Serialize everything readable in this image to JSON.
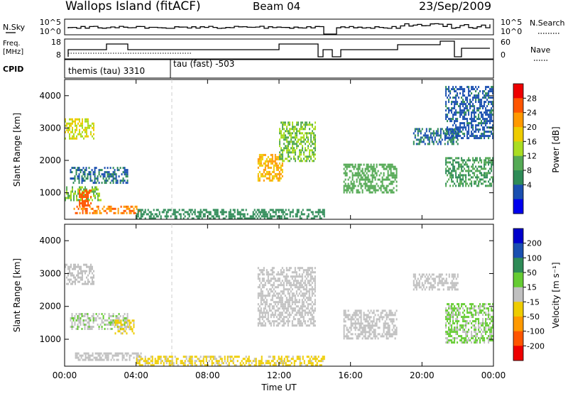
{
  "header": {
    "site": "Wallops Island (fitACF)",
    "beam": "Beam 04",
    "date": "23/Sep/2009"
  },
  "noise_panel": {
    "left_label": "N.Sky",
    "right_label": "N.Search",
    "yticks_left": [
      "10^5",
      "10^0"
    ],
    "yticks_right": [
      "10^5",
      "10^0"
    ]
  },
  "freq_panel": {
    "left_label_1": "Freq.",
    "left_label_2": "[MHz]",
    "right_label": "Nave",
    "yticks_left": [
      "18",
      "8"
    ],
    "yticks_right": [
      "60",
      "0"
    ]
  },
  "cpid": {
    "label": "CPID",
    "program_1": "themis (tau) 3310",
    "program_2": "tau (fast) -503"
  },
  "power_panel": {
    "ylabel": "Slant Range [km]",
    "cbar_label": "Power [dB]",
    "cbar_ticks": [
      "28",
      "24",
      "20",
      "16",
      "12",
      "8",
      "4"
    ],
    "cbar_colors": [
      "#ee0000",
      "#ff5500",
      "#ff9900",
      "#eecc00",
      "#aadd22",
      "#55aa55",
      "#2e8b57",
      "#1a4fb0",
      "#0000ee"
    ]
  },
  "velocity_panel": {
    "ylabel": "Slant Range [km]",
    "cbar_label": "Velocity [m s⁻¹]",
    "cbar_ticks": [
      "200",
      "100",
      "50",
      "15",
      "-15",
      "-50",
      "-100",
      "-200"
    ],
    "cbar_colors": [
      "#0000cc",
      "#1a4fb0",
      "#2e8b57",
      "#66cc33",
      "#c0c0c0",
      "#eecc00",
      "#ff9900",
      "#ff5500",
      "#ee0000"
    ]
  },
  "xaxis": {
    "label": "Time UT",
    "ticks": [
      "00:00",
      "04:00",
      "08:00",
      "12:00",
      "16:00",
      "20:00",
      "00:00"
    ]
  },
  "chart_data": {
    "type": "heatmap",
    "title": "Wallops Island (fitACF) Beam 04 23/Sep/2009",
    "xlabel": "Time UT",
    "ylabel": "Slant Range [km]",
    "xlim_hours": [
      0,
      24
    ],
    "ylim_km": [
      180,
      4500
    ],
    "yticks": [
      1000,
      2000,
      3000,
      4000
    ],
    "series": [
      {
        "name": "Power [dB]",
        "regions": [
          {
            "t0": 0.0,
            "t1": 1.6,
            "r0": 2700,
            "r1": 3300,
            "value": 18
          },
          {
            "t0": 0.3,
            "t1": 3.5,
            "r0": 1300,
            "r1": 1800,
            "value": 6
          },
          {
            "t0": 0.0,
            "t1": 2.0,
            "r0": 800,
            "r1": 1200,
            "value": 14
          },
          {
            "t0": 0.8,
            "t1": 1.5,
            "r0": 600,
            "r1": 1100,
            "value": 28
          },
          {
            "t0": 0.5,
            "t1": 4.3,
            "r0": 350,
            "r1": 600,
            "value": 26
          },
          {
            "t0": 4.0,
            "t1": 14.5,
            "r0": 200,
            "r1": 500,
            "value": 8
          },
          {
            "t0": 10.8,
            "t1": 12.2,
            "r0": 1400,
            "r1": 2200,
            "value": 22
          },
          {
            "t0": 12.0,
            "t1": 14.0,
            "r0": 2000,
            "r1": 3200,
            "value": 14
          },
          {
            "t0": 15.6,
            "t1": 18.6,
            "r0": 1000,
            "r1": 1900,
            "value": 12
          },
          {
            "t0": 19.5,
            "t1": 22.0,
            "r0": 2500,
            "r1": 3000,
            "value": 6
          },
          {
            "t0": 21.3,
            "t1": 24.0,
            "r0": 1200,
            "r1": 2100,
            "value": 10
          },
          {
            "t0": 21.3,
            "t1": 24.0,
            "r0": 2700,
            "r1": 4300,
            "value": 5
          }
        ]
      },
      {
        "name": "Velocity [m s⁻¹]",
        "regions": [
          {
            "t0": 0.0,
            "t1": 1.6,
            "r0": 2700,
            "r1": 3300,
            "value": 0
          },
          {
            "t0": 0.3,
            "t1": 3.5,
            "r0": 1300,
            "r1": 1800,
            "value": 15
          },
          {
            "t0": 2.8,
            "t1": 3.9,
            "r0": 1200,
            "r1": 1600,
            "value": -50
          },
          {
            "t0": 0.5,
            "t1": 4.3,
            "r0": 350,
            "r1": 600,
            "value": 0
          },
          {
            "t0": 4.0,
            "t1": 14.5,
            "r0": 200,
            "r1": 500,
            "value": -50
          },
          {
            "t0": 10.8,
            "t1": 14.0,
            "r0": 1400,
            "r1": 3200,
            "value": 0
          },
          {
            "t0": 15.6,
            "t1": 18.6,
            "r0": 1000,
            "r1": 1900,
            "value": 0
          },
          {
            "t0": 19.5,
            "t1": 22.0,
            "r0": 2500,
            "r1": 3000,
            "value": 0
          },
          {
            "t0": 21.3,
            "t1": 24.0,
            "r0": 900,
            "r1": 2100,
            "value": 40
          }
        ]
      }
    ]
  }
}
